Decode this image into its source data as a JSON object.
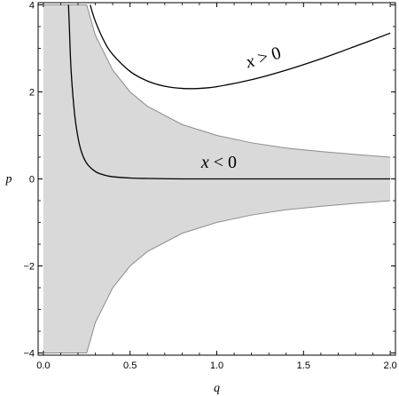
{
  "chart_data": {
    "type": "area",
    "title": "",
    "xlabel": "q",
    "ylabel": "p",
    "xlim": [
      -0.03,
      2.03
    ],
    "ylim": [
      -4.05,
      4.05
    ],
    "x_ticks": [
      0.0,
      0.5,
      1.0,
      1.5,
      2.0
    ],
    "x_tick_labels": [
      "0.0",
      "0.5",
      "1.0",
      "1.5",
      "2.0"
    ],
    "y_ticks": [
      -4,
      -2,
      0,
      2,
      4
    ],
    "y_tick_labels": [
      "−4",
      "−2",
      "0",
      "2",
      "4"
    ],
    "grid": false,
    "shaded_region": {
      "color": "#d9d9d9",
      "edge_color": "#8c8c8c",
      "x": [
        0.0,
        0.1,
        0.2,
        0.25,
        0.3,
        0.4,
        0.5,
        0.6,
        0.8,
        1.0,
        1.2,
        1.4,
        1.6,
        1.8,
        2.0
      ],
      "upper": [
        4.0,
        4.0,
        4.0,
        4.0,
        3.3,
        2.5,
        2.0,
        1.67,
        1.25,
        1.0,
        0.83,
        0.71,
        0.63,
        0.56,
        0.5
      ],
      "lower": [
        -4.0,
        -4.0,
        -4.0,
        -4.0,
        -3.3,
        -2.5,
        -2.0,
        -1.67,
        -1.25,
        -1.0,
        -0.83,
        -0.71,
        -0.63,
        -0.56,
        -0.5
      ]
    },
    "series": [
      {
        "name": "x > 0",
        "color": "#000000",
        "x": [
          0.27,
          0.3,
          0.35,
          0.4,
          0.5,
          0.6,
          0.7,
          0.8,
          0.9,
          1.0,
          1.2,
          1.4,
          1.6,
          1.8,
          2.0
        ],
        "y": [
          4.0,
          3.62,
          3.17,
          2.86,
          2.47,
          2.25,
          2.13,
          2.08,
          2.08,
          2.12,
          2.28,
          2.5,
          2.76,
          3.05,
          3.35
        ]
      },
      {
        "name": "x < 0",
        "color": "#000000",
        "x": [
          0.145,
          0.15,
          0.16,
          0.18,
          0.2,
          0.22,
          0.25,
          0.3,
          0.35,
          0.4,
          0.5,
          0.6,
          0.8,
          1.0,
          1.5,
          2.0
        ],
        "y": [
          4.0,
          3.5,
          2.5,
          1.5,
          0.95,
          0.62,
          0.36,
          0.17,
          0.09,
          0.05,
          0.02,
          0.01,
          0.0,
          0.0,
          0.0,
          0.0
        ]
      }
    ],
    "annotations": [
      {
        "text_var": "x",
        "text_rest": " > 0",
        "x": 1.18,
        "y": 2.55,
        "rotate": -17
      },
      {
        "text_var": "x",
        "text_rest": " < 0",
        "x": 0.91,
        "y": 0.26,
        "rotate": 0
      }
    ]
  }
}
